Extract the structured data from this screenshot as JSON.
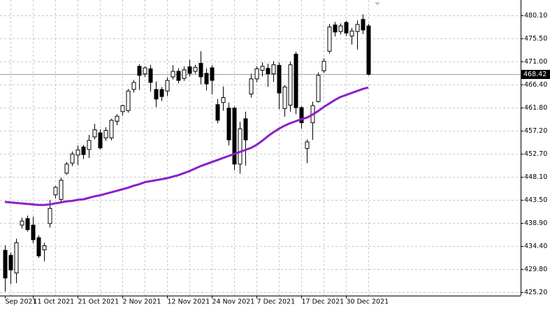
{
  "chart_data": {
    "type": "candlestick",
    "categories": [
      "Sep 2021",
      null,
      null,
      null,
      null,
      "11 Oct 2021",
      null,
      null,
      null,
      null,
      null,
      null,
      null,
      "21 Oct 2021",
      null,
      null,
      null,
      null,
      null,
      null,
      null,
      "2 Nov 2021",
      null,
      null,
      null,
      null,
      null,
      null,
      null,
      "12 Nov 2021",
      null,
      null,
      null,
      null,
      null,
      null,
      null,
      "24 Nov 2021",
      null,
      null,
      null,
      null,
      null,
      null,
      null,
      "7 Dec 2021",
      null,
      null,
      null,
      null,
      null,
      null,
      null,
      "17 Dec 2021",
      null,
      null,
      null,
      null,
      null,
      null,
      null,
      "30 Dec 2021",
      null,
      null,
      null,
      null
    ],
    "open": [
      433.5,
      432.5,
      429.0,
      438.5,
      439.8,
      438.5,
      436.0,
      433.6,
      438.8,
      444.5,
      443.6,
      448.8,
      450.8,
      452.4,
      454.0,
      453.5,
      456.0,
      456.8,
      455.8,
      455.8,
      459.1,
      461.0,
      461.2,
      465.4,
      470.0,
      468.5,
      469.5,
      465.4,
      465.4,
      465.1,
      467.9,
      469.0,
      467.6,
      469.9,
      469.0,
      470.6,
      468.6,
      469.7,
      462.4,
      462.8,
      461.7,
      461.7,
      450.6,
      459.6,
      464.5,
      467.5,
      469.2,
      469.6,
      468.5,
      470.2,
      461.6,
      462.3,
      472.4,
      461.8,
      453.7,
      458.8,
      463.0,
      469.1,
      473.0,
      478.2,
      476.9,
      478.7,
      476.0,
      476.9,
      479.3,
      478.0
    ],
    "high": [
      434.5,
      433.0,
      435.8,
      440.0,
      440.4,
      440.2,
      436.5,
      435.0,
      443.5,
      446.3,
      447.9,
      451.0,
      453.1,
      454.3,
      454.4,
      456.4,
      458.6,
      457.5,
      457.9,
      459.6,
      460.5,
      462.4,
      465.5,
      467.3,
      470.4,
      470.0,
      470.3,
      467.0,
      465.9,
      467.8,
      470.2,
      469.6,
      470.0,
      471.3,
      470.3,
      473.0,
      469.6,
      470.2,
      463.5,
      466.0,
      462.8,
      462.0,
      459.0,
      461.0,
      468.5,
      470.0,
      470.8,
      470.5,
      471.0,
      470.8,
      466.3,
      470.9,
      472.9,
      462.1,
      455.5,
      463.0,
      468.8,
      471.6,
      478.4,
      478.8,
      478.5,
      479.0,
      477.6,
      479.1,
      480.3,
      478.4
    ],
    "low": [
      425.3,
      426.8,
      427.0,
      437.8,
      437.2,
      434.9,
      432.0,
      431.3,
      438.0,
      443.8,
      443.0,
      448.5,
      450.2,
      450.4,
      451.6,
      451.8,
      455.5,
      453.5,
      455.2,
      455.3,
      458.3,
      460.2,
      460.8,
      464.8,
      465.3,
      467.9,
      465.0,
      461.9,
      463.1,
      464.1,
      467.4,
      466.6,
      467.1,
      468.0,
      468.5,
      466.4,
      465.2,
      464.4,
      458.7,
      461.2,
      454.3,
      449.4,
      448.7,
      450.3,
      463.8,
      466.8,
      468.0,
      465.9,
      466.9,
      461.5,
      460.0,
      461.0,
      460.5,
      457.6,
      450.8,
      455.4,
      462.8,
      468.7,
      472.5,
      475.9,
      476.3,
      476.0,
      474.3,
      473.3,
      476.4,
      468.2
    ],
    "close": [
      428.0,
      429.6,
      435.0,
      439.3,
      437.6,
      435.6,
      432.4,
      434.4,
      441.8,
      446.0,
      447.4,
      450.6,
      452.6,
      453.4,
      452.5,
      455.3,
      457.4,
      453.8,
      457.3,
      459.3,
      460.1,
      462.2,
      465.1,
      466.8,
      468.2,
      469.7,
      466.8,
      463.5,
      464.0,
      467.2,
      469.0,
      467.2,
      469.3,
      468.6,
      469.8,
      467.9,
      466.5,
      467.2,
      459.3,
      463.8,
      455.4,
      450.6,
      457.6,
      455.4,
      467.5,
      469.5,
      470.0,
      468.5,
      470.3,
      464.7,
      465.9,
      470.3,
      461.8,
      458.8,
      455.0,
      462.2,
      468.2,
      471.0,
      477.8,
      476.8,
      478.0,
      476.6,
      477.0,
      478.3,
      477.2,
      468.42
    ],
    "ma": {
      "color": "#8c1ec8",
      "values": [
        443.1,
        443.0,
        442.9,
        442.8,
        442.7,
        442.6,
        442.5,
        442.5,
        442.6,
        442.8,
        443.0,
        443.2,
        443.3,
        443.5,
        443.6,
        443.9,
        444.2,
        444.4,
        444.7,
        445.0,
        445.3,
        445.6,
        445.9,
        446.3,
        446.6,
        447.0,
        447.2,
        447.4,
        447.6,
        447.8,
        448.1,
        448.4,
        448.8,
        449.2,
        449.7,
        450.2,
        450.6,
        451.0,
        451.4,
        451.8,
        452.2,
        452.6,
        453.0,
        453.4,
        453.8,
        454.4,
        455.2,
        456.1,
        456.9,
        457.6,
        458.2,
        458.7,
        459.1,
        459.5,
        459.8,
        460.4,
        461.1,
        461.9,
        462.6,
        463.3,
        463.9,
        464.3,
        464.7,
        465.1,
        465.5,
        465.8
      ]
    },
    "up_color": "#ffffff",
    "down_color": "#000000",
    "outline_color": "#000000",
    "last_price": 468.42,
    "ylim": [
      424.51,
      483.15
    ],
    "yticks": [
      {
        "value": 425.2,
        "label": "425.20"
      },
      {
        "value": 429.8,
        "label": "429.80"
      },
      {
        "value": 434.4,
        "label": "434.40"
      },
      {
        "value": 438.9,
        "label": "438.90"
      },
      {
        "value": 443.5,
        "label": "443.50"
      },
      {
        "value": 448.1,
        "label": "448.10"
      },
      {
        "value": 452.7,
        "label": "452.70"
      },
      {
        "value": 457.2,
        "label": "457.20"
      },
      {
        "value": 461.8,
        "label": "461.80"
      },
      {
        "value": 466.4,
        "label": "466.40"
      },
      {
        "value": 471.0,
        "label": "471.00"
      },
      {
        "value": 475.5,
        "label": "475.50"
      },
      {
        "value": 480.1,
        "label": "480.10"
      }
    ],
    "grid": true
  }
}
